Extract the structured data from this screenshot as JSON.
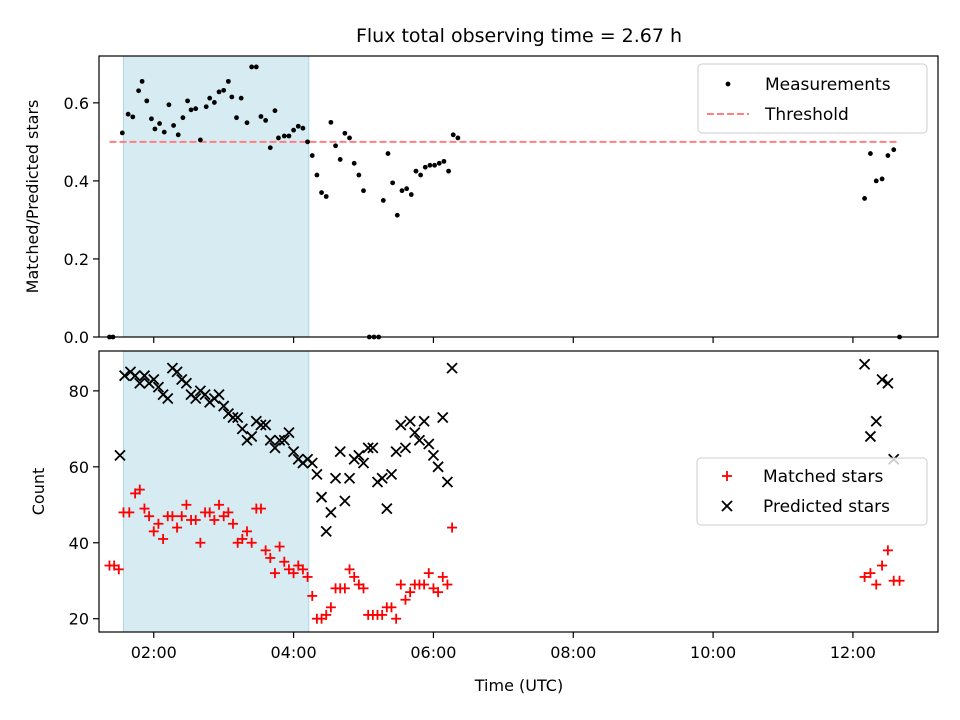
{
  "title": "Flux total observing time = 2.67 h",
  "colors": {
    "shade": "#add8e6",
    "threshold": "#ff7f7f",
    "measurement": "#000000",
    "matched": "#ff0000",
    "predicted": "#000000"
  },
  "chart_data": [
    {
      "type": "scatter",
      "panel": "top",
      "xlabel": "",
      "ylabel": "Matched/Predicted stars",
      "ylim": [
        0.0,
        0.72
      ],
      "yticks": [
        "0.0",
        "0.2",
        "0.4",
        "0.6"
      ],
      "xlim": [
        "01:13",
        "13:13"
      ],
      "shaded_interval": [
        "01:34",
        "04:13"
      ],
      "threshold": 0.5,
      "legend": {
        "position": "top-right",
        "entries": [
          "Measurements",
          "Threshold"
        ]
      },
      "series": [
        {
          "name": "Measurements",
          "marker": "dot",
          "points": [
            [
              "01:22",
              0.0
            ],
            [
              "01:25",
              0.0
            ],
            [
              "01:33",
              0.523
            ],
            [
              "01:38",
              0.571
            ],
            [
              "01:42",
              0.564
            ],
            [
              "01:47",
              0.631
            ],
            [
              "01:50",
              0.655
            ],
            [
              "01:54",
              0.605
            ],
            [
              "01:58",
              0.559
            ],
            [
              "02:01",
              0.533
            ],
            [
              "02:05",
              0.547
            ],
            [
              "02:09",
              0.525
            ],
            [
              "02:13",
              0.595
            ],
            [
              "02:17",
              0.542
            ],
            [
              "02:21",
              0.518
            ],
            [
              "02:25",
              0.562
            ],
            [
              "02:29",
              0.605
            ],
            [
              "02:32",
              0.582
            ],
            [
              "02:36",
              0.585
            ],
            [
              "02:40",
              0.505
            ],
            [
              "02:45",
              0.59
            ],
            [
              "02:48",
              0.612
            ],
            [
              "02:52",
              0.601
            ],
            [
              "02:56",
              0.628
            ],
            [
              "03:00",
              0.632
            ],
            [
              "03:04",
              0.655
            ],
            [
              "03:07",
              0.615
            ],
            [
              "03:11",
              0.562
            ],
            [
              "03:15",
              0.612
            ],
            [
              "03:20",
              0.549
            ],
            [
              "03:24",
              0.692
            ],
            [
              "03:28",
              0.692
            ],
            [
              "03:32",
              0.565
            ],
            [
              "03:36",
              0.555
            ],
            [
              "03:40",
              0.485
            ],
            [
              "03:44",
              0.58
            ],
            [
              "03:47",
              0.51
            ],
            [
              "03:52",
              0.515
            ],
            [
              "03:56",
              0.515
            ],
            [
              "04:00",
              0.53
            ],
            [
              "04:04",
              0.54
            ],
            [
              "04:08",
              0.535
            ],
            [
              "04:12",
              0.5
            ],
            [
              "04:16",
              0.465
            ],
            [
              "04:20",
              0.415
            ],
            [
              "04:24",
              0.37
            ],
            [
              "04:28",
              0.36
            ],
            [
              "04:32",
              0.55
            ],
            [
              "04:36",
              0.49
            ],
            [
              "04:40",
              0.455
            ],
            [
              "04:44",
              0.522
            ],
            [
              "04:48",
              0.51
            ],
            [
              "04:52",
              0.445
            ],
            [
              "04:56",
              0.415
            ],
            [
              "05:00",
              0.375
            ],
            [
              "05:05",
              0.0
            ],
            [
              "05:09",
              0.0
            ],
            [
              "05:13",
              0.0
            ],
            [
              "05:17",
              0.35
            ],
            [
              "05:21",
              0.47
            ],
            [
              "05:25",
              0.395
            ],
            [
              "05:29",
              0.312
            ],
            [
              "05:33",
              0.375
            ],
            [
              "05:37",
              0.38
            ],
            [
              "05:41",
              0.365
            ],
            [
              "05:45",
              0.425
            ],
            [
              "05:49",
              0.415
            ],
            [
              "05:53",
              0.435
            ],
            [
              "05:57",
              0.44
            ],
            [
              "06:01",
              0.44
            ],
            [
              "06:05",
              0.445
            ],
            [
              "06:09",
              0.45
            ],
            [
              "06:13",
              0.425
            ],
            [
              "06:17",
              0.518
            ],
            [
              "06:21",
              0.51
            ],
            [
              "12:10",
              0.355
            ],
            [
              "12:15",
              0.47
            ],
            [
              "12:20",
              0.4
            ],
            [
              "12:25",
              0.405
            ],
            [
              "12:30",
              0.465
            ],
            [
              "12:35",
              0.48
            ],
            [
              "12:40",
              0.0
            ]
          ]
        }
      ]
    },
    {
      "type": "scatter",
      "panel": "bottom",
      "xlabel": "Time (UTC)",
      "ylabel": "Count",
      "ylim": [
        16.5,
        90.5
      ],
      "yticks": [
        "20",
        "40",
        "60",
        "80"
      ],
      "xlim": [
        "01:13",
        "13:13"
      ],
      "xticks": [
        "02:00",
        "04:00",
        "06:00",
        "08:00",
        "10:00",
        "12:00"
      ],
      "shaded_interval": [
        "01:34",
        "04:13"
      ],
      "legend": {
        "position": "center-right",
        "entries": [
          "Matched stars",
          "Predicted stars"
        ]
      },
      "series": [
        {
          "name": "Matched stars",
          "marker": "+",
          "points": [
            [
              "01:22",
              34
            ],
            [
              "01:26",
              34
            ],
            [
              "01:30",
              33
            ],
            [
              "01:34",
              48
            ],
            [
              "01:39",
              48
            ],
            [
              "01:44",
              53
            ],
            [
              "01:48",
              54
            ],
            [
              "01:52",
              49
            ],
            [
              "01:56",
              47
            ],
            [
              "02:00",
              43
            ],
            [
              "02:04",
              45
            ],
            [
              "02:08",
              41
            ],
            [
              "02:12",
              47
            ],
            [
              "02:16",
              47
            ],
            [
              "02:20",
              44
            ],
            [
              "02:24",
              47
            ],
            [
              "02:28",
              50
            ],
            [
              "02:32",
              46
            ],
            [
              "02:36",
              46
            ],
            [
              "02:40",
              40
            ],
            [
              "02:44",
              48
            ],
            [
              "02:48",
              48
            ],
            [
              "02:52",
              46
            ],
            [
              "02:56",
              50
            ],
            [
              "03:00",
              47
            ],
            [
              "03:04",
              48
            ],
            [
              "03:08",
              45
            ],
            [
              "03:12",
              40
            ],
            [
              "03:16",
              41
            ],
            [
              "03:20",
              43
            ],
            [
              "03:24",
              40
            ],
            [
              "03:28",
              49
            ],
            [
              "03:32",
              49
            ],
            [
              "03:36",
              38
            ],
            [
              "03:40",
              36
            ],
            [
              "03:44",
              32
            ],
            [
              "03:48",
              39
            ],
            [
              "03:52",
              35
            ],
            [
              "03:56",
              33
            ],
            [
              "04:00",
              32
            ],
            [
              "04:04",
              34
            ],
            [
              "04:08",
              33
            ],
            [
              "04:12",
              31
            ],
            [
              "04:16",
              26
            ],
            [
              "04:20",
              20
            ],
            [
              "04:24",
              20
            ],
            [
              "04:28",
              21
            ],
            [
              "04:32",
              23
            ],
            [
              "04:36",
              28
            ],
            [
              "04:40",
              28
            ],
            [
              "04:44",
              28
            ],
            [
              "04:48",
              33
            ],
            [
              "04:52",
              31
            ],
            [
              "04:56",
              29
            ],
            [
              "05:00",
              28
            ],
            [
              "05:04",
              21
            ],
            [
              "05:08",
              21
            ],
            [
              "05:12",
              21
            ],
            [
              "05:16",
              21
            ],
            [
              "05:20",
              23
            ],
            [
              "05:24",
              23
            ],
            [
              "05:28",
              20
            ],
            [
              "05:32",
              29
            ],
            [
              "05:36",
              25
            ],
            [
              "05:40",
              27
            ],
            [
              "05:44",
              29
            ],
            [
              "05:48",
              29
            ],
            [
              "05:52",
              29
            ],
            [
              "05:56",
              32
            ],
            [
              "06:00",
              28
            ],
            [
              "06:04",
              27
            ],
            [
              "06:08",
              31
            ],
            [
              "06:12",
              29
            ],
            [
              "06:16",
              44
            ],
            [
              "12:10",
              31
            ],
            [
              "12:15",
              32
            ],
            [
              "12:20",
              29
            ],
            [
              "12:25",
              34
            ],
            [
              "12:30",
              38
            ],
            [
              "12:35",
              30
            ],
            [
              "12:40",
              30
            ]
          ]
        },
        {
          "name": "Predicted stars",
          "marker": "x",
          "points": [
            [
              "01:31",
              63
            ],
            [
              "01:35",
              84
            ],
            [
              "01:40",
              85
            ],
            [
              "01:44",
              84
            ],
            [
              "01:48",
              82
            ],
            [
              "01:52",
              84
            ],
            [
              "01:56",
              82
            ],
            [
              "02:00",
              83
            ],
            [
              "02:04",
              81
            ],
            [
              "02:08",
              79
            ],
            [
              "02:12",
              78
            ],
            [
              "02:16",
              86
            ],
            [
              "02:20",
              85
            ],
            [
              "02:24",
              83
            ],
            [
              "02:28",
              82
            ],
            [
              "02:32",
              79
            ],
            [
              "02:36",
              78
            ],
            [
              "02:40",
              80
            ],
            [
              "02:44",
              79
            ],
            [
              "02:48",
              77
            ],
            [
              "02:52",
              78
            ],
            [
              "02:56",
              79
            ],
            [
              "03:00",
              76
            ],
            [
              "03:04",
              74
            ],
            [
              "03:08",
              73
            ],
            [
              "03:12",
              73
            ],
            [
              "03:16",
              70
            ],
            [
              "03:20",
              67
            ],
            [
              "03:24",
              68
            ],
            [
              "03:28",
              72
            ],
            [
              "03:32",
              71
            ],
            [
              "03:36",
              71
            ],
            [
              "03:40",
              67
            ],
            [
              "03:44",
              65
            ],
            [
              "03:48",
              67
            ],
            [
              "03:52",
              67
            ],
            [
              "03:56",
              69
            ],
            [
              "04:00",
              64
            ],
            [
              "04:04",
              62
            ],
            [
              "04:08",
              61
            ],
            [
              "04:12",
              62
            ],
            [
              "04:16",
              61
            ],
            [
              "04:20",
              58
            ],
            [
              "04:24",
              52
            ],
            [
              "04:28",
              43
            ],
            [
              "04:32",
              48
            ],
            [
              "04:36",
              57
            ],
            [
              "04:40",
              64
            ],
            [
              "04:44",
              51
            ],
            [
              "04:48",
              57
            ],
            [
              "04:52",
              62
            ],
            [
              "04:56",
              63
            ],
            [
              "05:00",
              61
            ],
            [
              "05:04",
              65
            ],
            [
              "05:08",
              65
            ],
            [
              "05:12",
              56
            ],
            [
              "05:16",
              57
            ],
            [
              "05:20",
              49
            ],
            [
              "05:24",
              58
            ],
            [
              "05:28",
              64
            ],
            [
              "05:32",
              71
            ],
            [
              "05:36",
              65
            ],
            [
              "05:40",
              72
            ],
            [
              "05:44",
              69
            ],
            [
              "05:48",
              67
            ],
            [
              "05:52",
              72
            ],
            [
              "05:56",
              66
            ],
            [
              "06:00",
              63
            ],
            [
              "06:04",
              60
            ],
            [
              "06:08",
              73
            ],
            [
              "06:12",
              56
            ],
            [
              "06:16",
              86
            ],
            [
              "12:10",
              87
            ],
            [
              "12:15",
              68
            ],
            [
              "12:20",
              72
            ],
            [
              "12:25",
              83
            ],
            [
              "12:30",
              82
            ],
            [
              "12:35",
              62
            ]
          ]
        }
      ]
    }
  ]
}
